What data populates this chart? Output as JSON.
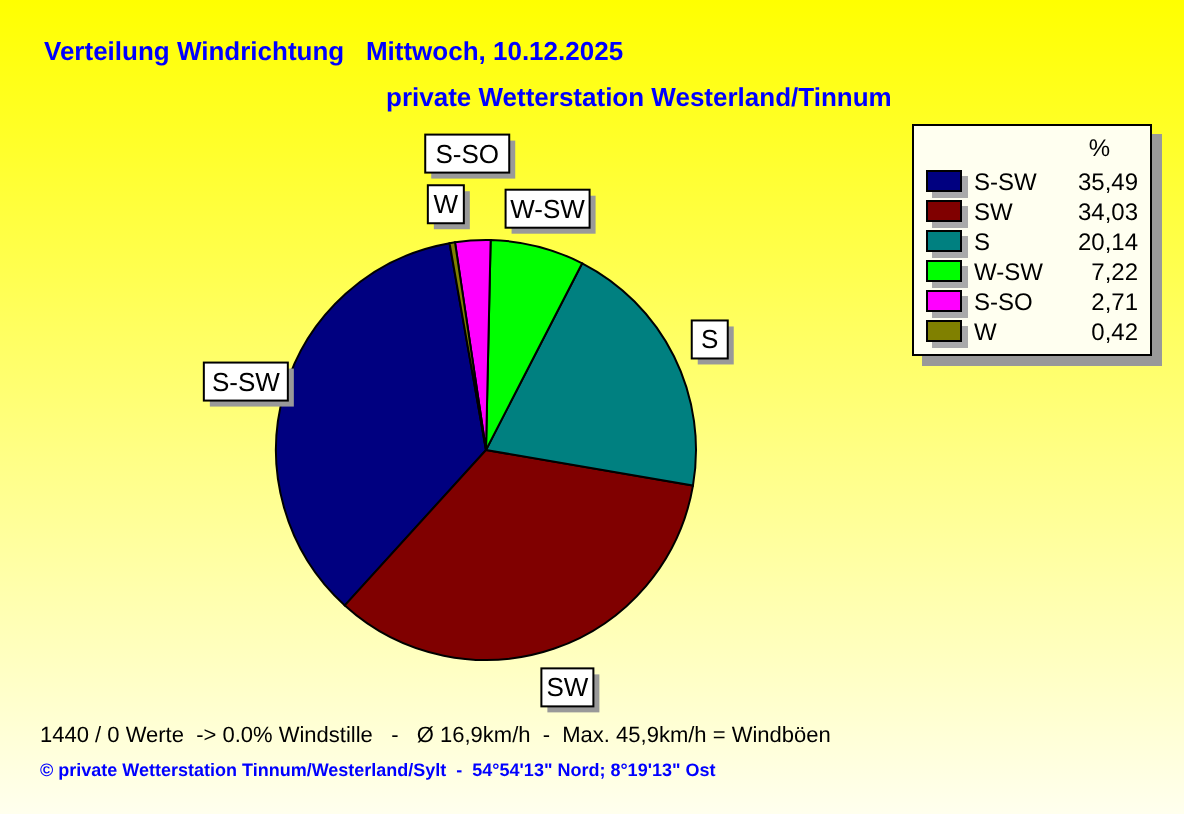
{
  "chart_data": {
    "type": "pie",
    "title": "Verteilung Windrichtung   Mittwoch, 10.12.2025",
    "subtitle": "private Wetterstation Westerland/Tinnum",
    "legend_title": "%",
    "categories": [
      "S-SW",
      "SW",
      "S",
      "W-SW",
      "S-SO",
      "W"
    ],
    "values": [
      35.49,
      34.03,
      20.14,
      7.22,
      2.71,
      0.42
    ],
    "value_labels": [
      "35,49",
      "34,03",
      "20,14",
      "7,22",
      "2,71",
      "0,42"
    ],
    "colors": [
      "#000080",
      "#800000",
      "#008080",
      "#00ff00",
      "#ff00ff",
      "#808000"
    ],
    "legend": "top right",
    "annotations": [
      "1440 / 0 Werte  -> 0.0% Windstille   -   Ø 16,9km/h  -  Max. 45,9km/h = Windböen",
      "© private Wetterstation Tinnum/Westerland/Sylt  -  54°54'13\" Nord; 8°19'13\" Ost"
    ]
  }
}
